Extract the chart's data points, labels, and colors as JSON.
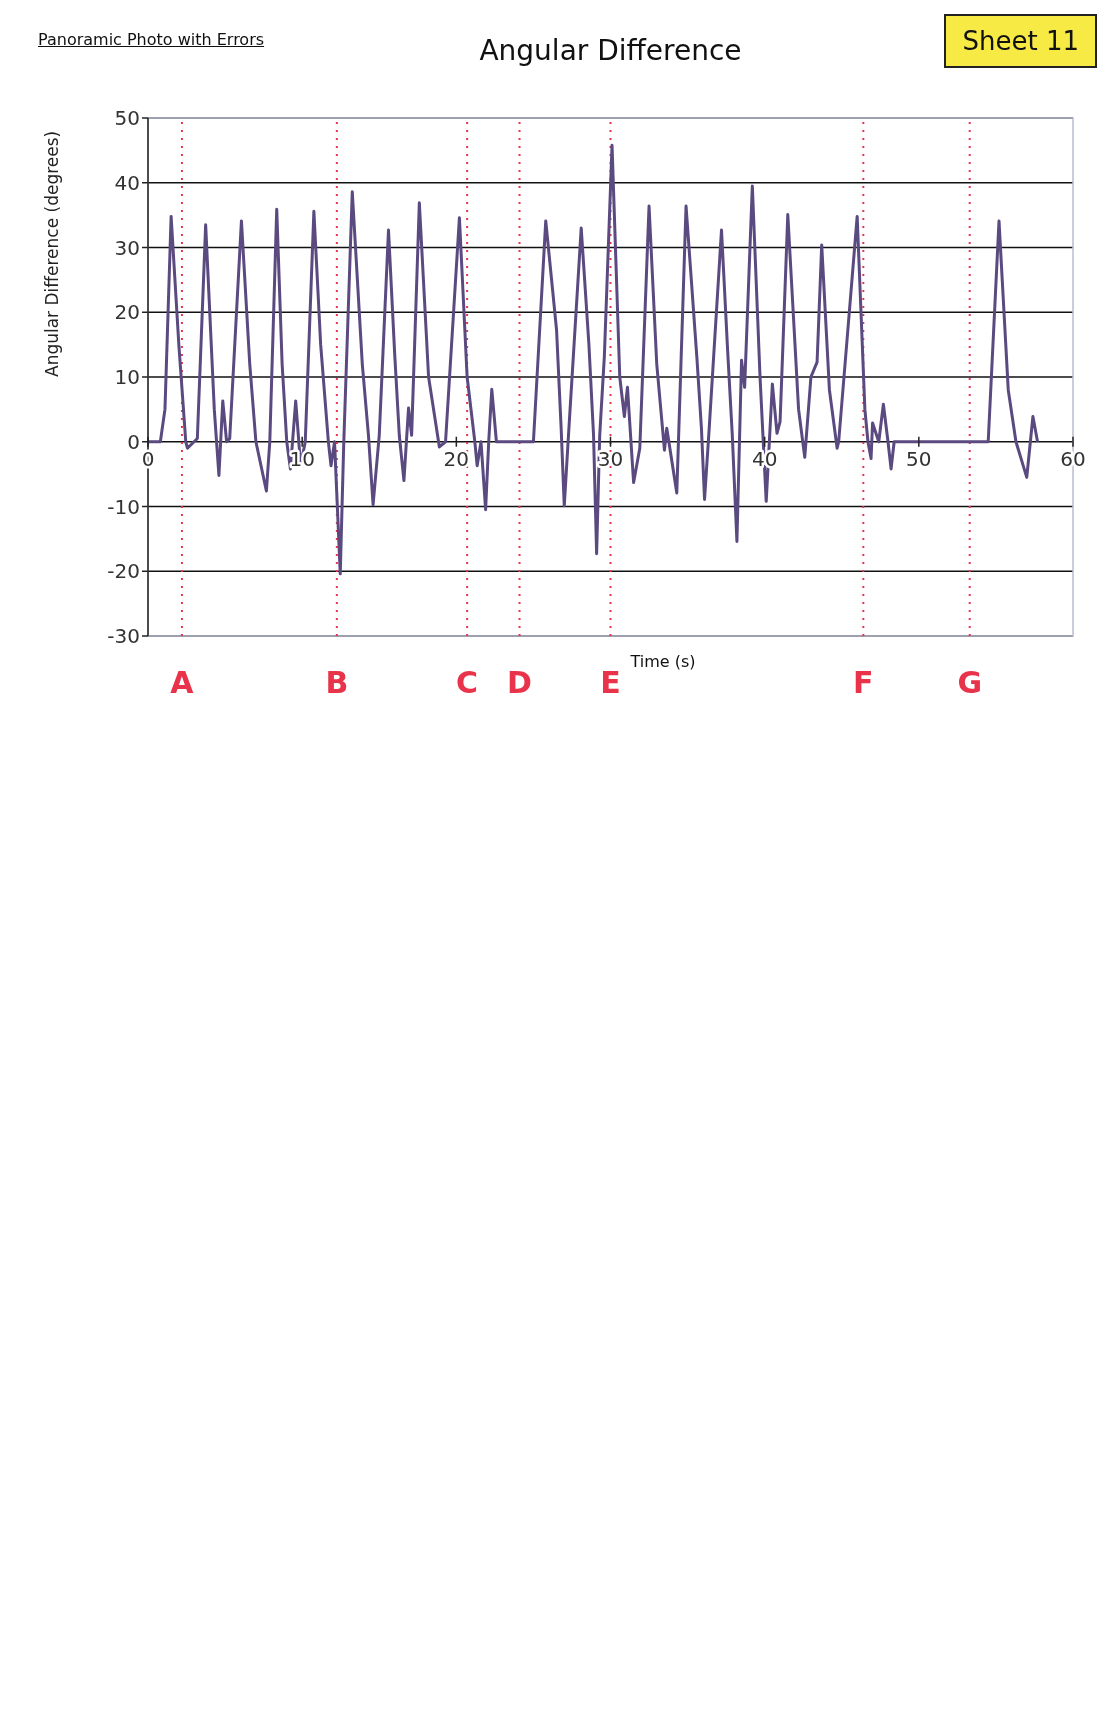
{
  "chart_data": {
    "type": "line",
    "title": "Angular Difference",
    "subtitle": "Panoramic Photo with Errors",
    "xlabel": "Time (s)",
    "ylabel": "Angular Difference (degrees)",
    "annotations": [
      "Sheet 11"
    ],
    "x": [
      0,
      0.8,
      1.1,
      1.5,
      2.0,
      2.45,
      2.56,
      3.2,
      3.74,
      4.3,
      4.6,
      4.85,
      5.1,
      5.3,
      6.06,
      6.6,
      7.0,
      7.68,
      7.9,
      8.35,
      8.7,
      9.0,
      9.24,
      9.58,
      9.9,
      10.2,
      10.76,
      11.2,
      11.7,
      11.87,
      12.1,
      12.47,
      12.7,
      13.25,
      13.9,
      14.3,
      14.6,
      15.0,
      15.6,
      16.0,
      16.3,
      16.6,
      16.9,
      17.1,
      17.6,
      18.2,
      18.9,
      19.3,
      20.2,
      20.7,
      21.2,
      21.35,
      21.6,
      21.9,
      22.1,
      22.3,
      22.6,
      25.0,
      25.8,
      26.5,
      26.8,
      27.0,
      27.3,
      28.1,
      28.6,
      28.9,
      29.1,
      29.3,
      29.6,
      30.1,
      30.6,
      30.9,
      31.1,
      31.5,
      31.9,
      32.5,
      33.0,
      33.5,
      33.65,
      34.3,
      34.9,
      35.6,
      35.9,
      36.1,
      36.4,
      37.2,
      37.6,
      37.9,
      38.2,
      38.5,
      38.7,
      39.2,
      39.7,
      40.1,
      40.5,
      40.8,
      41.0,
      41.5,
      42.2,
      42.6,
      43.0,
      43.4,
      43.7,
      44.2,
      44.7,
      44.8,
      46.0,
      46.5,
      46.7,
      46.9,
      47.0,
      47.4,
      47.7,
      48.0,
      48.2,
      48.4,
      54.5,
      55.2,
      55.8,
      56.3,
      57.0,
      57.4,
      57.7
    ],
    "series": [
      {
        "color": "#5a4a80",
        "values": [
          0,
          0,
          5,
          34.8,
          15,
          0,
          -1,
          0.5,
          33.5,
          5,
          -5.2,
          6.3,
          0,
          0.5,
          34.1,
          12,
          0,
          -7.6,
          0,
          35.9,
          12,
          0,
          -4.2,
          6.3,
          -3.7,
          0,
          35.6,
          15,
          0,
          -3.7,
          0,
          -20.4,
          0,
          38.6,
          12,
          1,
          -9.7,
          1,
          32.7,
          13.6,
          1,
          -6,
          5.2,
          1,
          36.9,
          10,
          -0.8,
          0,
          34.6,
          10,
          0,
          -3.7,
          0,
          -10.5,
          0,
          8.1,
          0,
          0,
          34.1,
          17.3,
          2,
          -9.9,
          2,
          33,
          15,
          1,
          -17.3,
          1,
          13.1,
          45.8,
          10,
          3.9,
          8.4,
          -6.3,
          -1,
          36.4,
          12,
          -1.3,
          2.1,
          -7.9,
          36.4,
          13.1,
          2,
          -8.9,
          2,
          32.7,
          14,
          1,
          -15.4,
          12.6,
          8.4,
          39.5,
          10,
          -9.2,
          8.9,
          1.3,
          3.1,
          35.1,
          5,
          -2.4,
          10,
          12.3,
          30.4,
          8,
          -1,
          0,
          34.8,
          5,
          0,
          -2.6,
          2.9,
          0,
          5.8,
          0,
          -4.2,
          0,
          0,
          34.1,
          8,
          0,
          -5.5,
          3.9,
          0
        ]
      }
    ],
    "xlim": [
      0,
      60
    ],
    "xticks": [
      0,
      10,
      20,
      30,
      40,
      50,
      60
    ],
    "ylim": [
      -30,
      50
    ],
    "yticks": [
      -30,
      -20,
      -10,
      0,
      10,
      20,
      30,
      40,
      50
    ],
    "grid": "y",
    "line_style": "solid",
    "ref_lines": [
      {
        "axis": "x",
        "value": 2.2,
        "label": "A",
        "color": "#e8334a",
        "line_style": "dotted"
      },
      {
        "axis": "x",
        "value": 12.25,
        "label": "B",
        "color": "#e8334a",
        "line_style": "dotted"
      },
      {
        "axis": "x",
        "value": 20.7,
        "label": "C",
        "color": "#e8334a",
        "line_style": "dotted"
      },
      {
        "axis": "x",
        "value": 24.1,
        "label": "D",
        "color": "#e8334a",
        "line_style": "dotted"
      },
      {
        "axis": "x",
        "value": 30.0,
        "label": "E",
        "color": "#e8334a",
        "line_style": "dotted"
      },
      {
        "axis": "x",
        "value": 46.4,
        "label": "F",
        "color": "#e8334a",
        "line_style": "dotted"
      },
      {
        "axis": "x",
        "value": 53.3,
        "label": "G",
        "color": "#e8334a",
        "line_style": "dotted"
      }
    ]
  }
}
